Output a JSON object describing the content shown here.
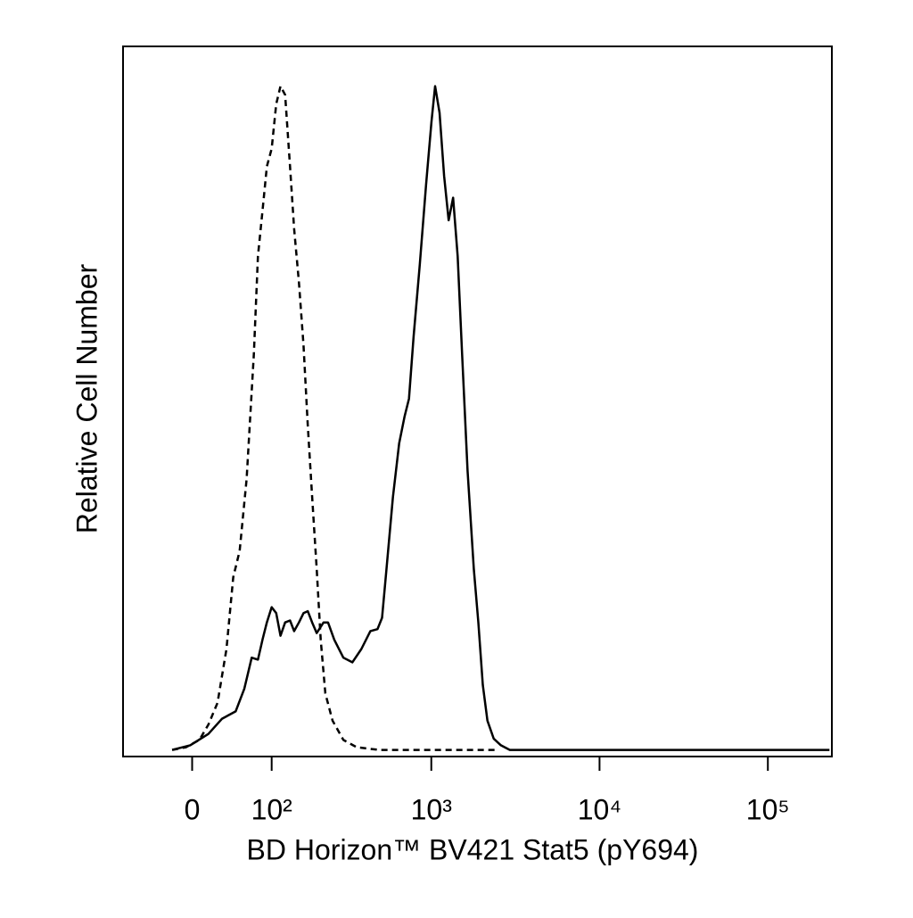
{
  "chart_data": {
    "type": "line",
    "xlabel": "BD Horizon™ BV421 Stat5 (pY694)",
    "ylabel": "Relative Cell Number",
    "xscale": "biexponential",
    "xlim": [
      -83,
      240000
    ],
    "ylim": [
      -1,
      106
    ],
    "xticks": [
      0,
      {
        "value": 100,
        "label": "10²"
      },
      {
        "value": 1000,
        "label": "10³"
      },
      {
        "value": 10000,
        "label": "10⁴"
      },
      {
        "value": 100000,
        "label": "10⁵"
      }
    ],
    "series": [
      {
        "color": "#000000",
        "line_style": "dashed",
        "x": [
          -21,
          -6.5,
          7.5,
          17,
          27,
          37,
          45,
          53,
          62,
          72,
          78,
          85,
          92,
          100,
          108,
          116,
          125,
          135,
          144,
          155,
          166,
          177,
          189,
          202,
          214,
          229,
          254,
          296,
          357,
          489,
          1163,
          2440
        ],
        "values": [
          0,
          0.4,
          1.5,
          3.8,
          7.1,
          15.2,
          26.0,
          30.0,
          40.8,
          59.6,
          74.4,
          81.2,
          87.9,
          90.6,
          97.3,
          100,
          98.7,
          87.9,
          78.5,
          70.4,
          61.0,
          48.9,
          38.1,
          27.3,
          16.6,
          8.5,
          4.4,
          1.5,
          0.4,
          0,
          0,
          0
        ]
      },
      {
        "color": "#000000",
        "line_style": "solid",
        "x": [
          -21,
          -2,
          17,
          32,
          48,
          59,
          69,
          78,
          85,
          92,
          100,
          108,
          116,
          125,
          135,
          144,
          155,
          166,
          177,
          189,
          202,
          223,
          238,
          260,
          296,
          336,
          381,
          432,
          477,
          508,
          540,
          590,
          643,
          692,
          736,
          784,
          854,
          931,
          1002,
          1053,
          1120,
          1192,
          1268,
          1349,
          1435,
          1526,
          1643,
          1791,
          1905,
          2026,
          2158,
          2349,
          2593,
          2932,
          7389,
          232300
        ],
        "values": [
          0,
          0.7,
          2.4,
          4.7,
          5.8,
          9.2,
          13.9,
          13.6,
          16.6,
          19.2,
          21.5,
          20.6,
          17.2,
          19.2,
          19.5,
          17.9,
          19.2,
          20.6,
          20.9,
          19.2,
          17.6,
          19.2,
          19.2,
          16.6,
          13.9,
          13.2,
          15.2,
          17.9,
          18.2,
          19.9,
          27.3,
          38.1,
          46.2,
          50.2,
          52.9,
          62.3,
          73.1,
          85.2,
          94.6,
          100,
          96.0,
          86.5,
          79.8,
          83.2,
          74.4,
          59.6,
          42.1,
          27.3,
          19.2,
          9.8,
          4.4,
          1.7,
          0.7,
          0,
          0,
          0
        ]
      }
    ]
  }
}
